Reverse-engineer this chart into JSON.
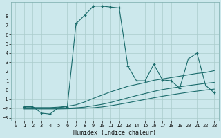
{
  "title": "",
  "xlabel": "Humidex (Indice chaleur)",
  "ylabel": "",
  "background_color": "#cce8ec",
  "grid_color": "#aacccc",
  "line_color": "#1a6b6b",
  "xlim": [
    -0.5,
    23.5
  ],
  "ylim": [
    -3.3,
    9.5
  ],
  "yticks": [
    -3,
    -2,
    -1,
    0,
    1,
    2,
    3,
    4,
    5,
    6,
    7,
    8
  ],
  "xticks": [
    0,
    1,
    2,
    3,
    4,
    5,
    6,
    7,
    8,
    9,
    10,
    11,
    12,
    13,
    14,
    15,
    16,
    17,
    18,
    19,
    20,
    21,
    22,
    23
  ],
  "series": [
    {
      "x": [
        1,
        2,
        3,
        4,
        5,
        6,
        7,
        8,
        9,
        10,
        11,
        12,
        13,
        14,
        15,
        16,
        17,
        18,
        19,
        20,
        21,
        22,
        23
      ],
      "y": [
        -1.8,
        -1.8,
        -2.5,
        -2.6,
        -1.9,
        -1.8,
        7.2,
        8.1,
        9.1,
        9.1,
        9.0,
        8.9,
        2.6,
        1.0,
        1.0,
        2.8,
        1.1,
        1.0,
        0.2,
        3.4,
        4.0,
        0.5,
        -0.3
      ],
      "marker": "+",
      "linestyle": "-"
    },
    {
      "x": [
        1,
        2,
        3,
        4,
        5,
        6,
        7,
        8,
        9,
        10,
        11,
        12,
        13,
        14,
        15,
        16,
        17,
        18,
        19,
        20,
        21,
        22,
        23
      ],
      "y": [
        -1.9,
        -1.9,
        -1.9,
        -1.9,
        -1.85,
        -1.75,
        -1.6,
        -1.3,
        -0.9,
        -0.55,
        -0.2,
        0.1,
        0.4,
        0.6,
        0.8,
        1.05,
        1.2,
        1.35,
        1.5,
        1.65,
        1.8,
        1.9,
        2.1
      ],
      "marker": null,
      "linestyle": "-"
    },
    {
      "x": [
        1,
        2,
        3,
        4,
        5,
        6,
        7,
        8,
        9,
        10,
        11,
        12,
        13,
        14,
        15,
        16,
        17,
        18,
        19,
        20,
        21,
        22,
        23
      ],
      "y": [
        -2.0,
        -2.0,
        -2.0,
        -2.0,
        -2.0,
        -1.97,
        -1.92,
        -1.85,
        -1.7,
        -1.55,
        -1.35,
        -1.1,
        -0.85,
        -0.6,
        -0.38,
        -0.15,
        0.05,
        0.2,
        0.35,
        0.48,
        0.6,
        0.72,
        0.82
      ],
      "marker": null,
      "linestyle": "-"
    },
    {
      "x": [
        1,
        2,
        3,
        4,
        5,
        6,
        7,
        8,
        9,
        10,
        11,
        12,
        13,
        14,
        15,
        16,
        17,
        18,
        19,
        20,
        21,
        22,
        23
      ],
      "y": [
        -2.05,
        -2.05,
        -2.05,
        -2.05,
        -2.05,
        -2.03,
        -2.0,
        -1.97,
        -1.92,
        -1.83,
        -1.7,
        -1.55,
        -1.38,
        -1.2,
        -1.02,
        -0.84,
        -0.67,
        -0.52,
        -0.38,
        -0.24,
        -0.12,
        0.0,
        0.1
      ],
      "marker": null,
      "linestyle": "-"
    }
  ]
}
